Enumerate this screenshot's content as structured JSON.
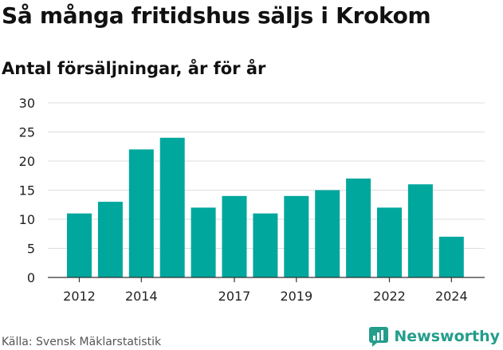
{
  "title": "Så många fritidshus säljs i Krokom",
  "subtitle": "Antal försäljningar, år för år",
  "source": "Källa: Svensk Mäklarstatistik",
  "brand": "Newsworthy",
  "colors": {
    "bar": "#00a79d",
    "grid": "#dddddd",
    "axis": "#333333",
    "brand": "#249d8b"
  },
  "chart_data": {
    "type": "bar",
    "x": [
      2012,
      2013,
      2014,
      2015,
      2016,
      2017,
      2018,
      2019,
      2020,
      2021,
      2022,
      2023,
      2024
    ],
    "values": [
      11,
      13,
      22,
      24,
      12,
      14,
      11,
      14,
      15,
      17,
      12,
      16,
      7
    ],
    "x_tick_labels": [
      "2012",
      "2014",
      "2017",
      "2019",
      "2022",
      "2024"
    ],
    "ylim": [
      0,
      30
    ],
    "y_ticks": [
      0,
      5,
      10,
      15,
      20,
      25,
      30
    ],
    "grid": true
  }
}
